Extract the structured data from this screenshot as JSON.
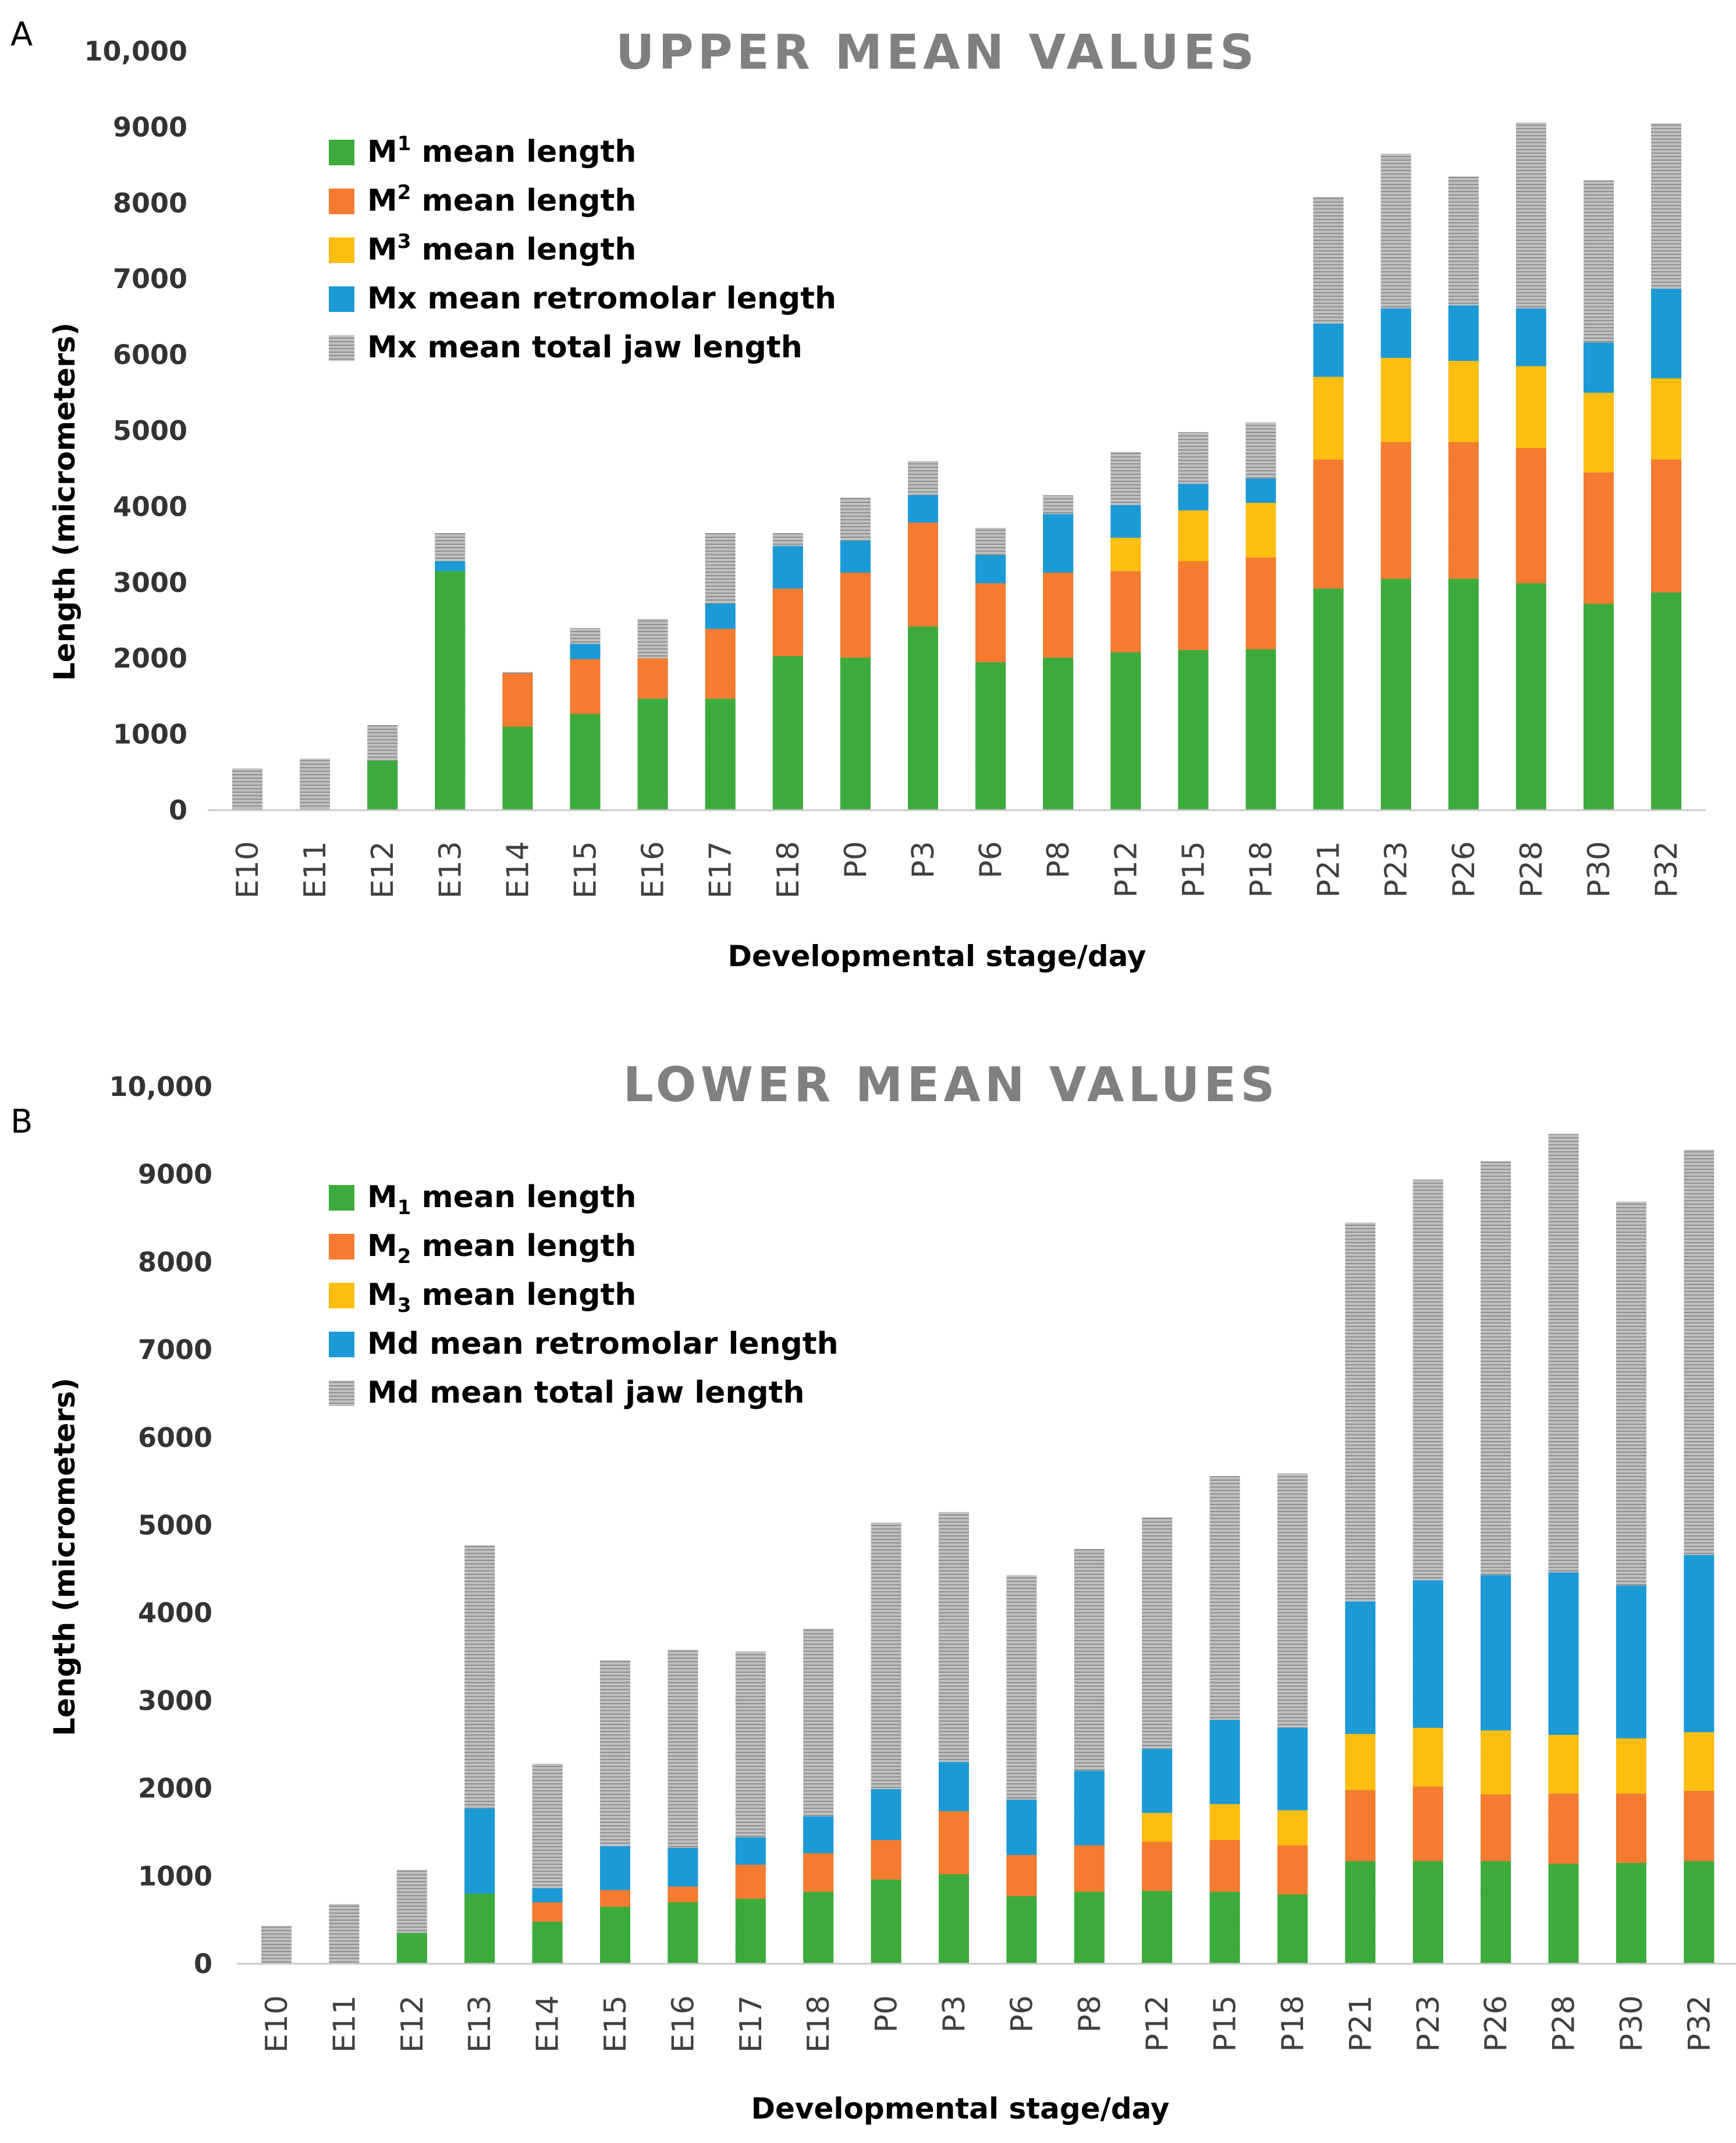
{
  "colors": {
    "m1": "#3cab3c",
    "m2": "#f47b2f",
    "m3": "#fdbe10",
    "retromolar": "#1b9ad6",
    "total": "#c0c0c0",
    "total_stripe": "#8f8f8f",
    "axis": "#c8c8c8"
  },
  "chart_data": [
    {
      "type": "bar",
      "stacked": true,
      "panel_letter": "A",
      "title": "UPPER MEAN VALUES",
      "xlabel": "Developmental stage/day",
      "ylabel": "Length (micrometers)",
      "ylim": [
        0,
        10000
      ],
      "yticks": [
        "0",
        "1000",
        "2000",
        "3000",
        "4000",
        "5000",
        "6000",
        "7000",
        "8000",
        "9000",
        "10,000"
      ],
      "legend_position": "top-left",
      "categories": [
        "E10",
        "E11",
        "E12",
        "E13",
        "E14",
        "E15",
        "E16",
        "E17",
        "E18",
        "P0",
        "P3",
        "P6",
        "P8",
        "P12",
        "P15",
        "P18",
        "P21",
        "P23",
        "P26",
        "P28",
        "P30",
        "P32"
      ],
      "series": [
        {
          "key": "m1",
          "name": "M1 mean length",
          "label_parts": [
            "M",
            "1",
            " mean length"
          ],
          "sub_type": "sup",
          "values": [
            0,
            0,
            650,
            3150,
            1100,
            1270,
            1470,
            1470,
            2030,
            2010,
            2420,
            1950,
            2010,
            2080,
            2110,
            2120,
            2920,
            3050,
            3050,
            2990,
            2720,
            2870
          ]
        },
        {
          "key": "m2",
          "name": "M2 mean length",
          "label_parts": [
            "M",
            "2",
            " mean length"
          ],
          "sub_type": "sup",
          "values": [
            0,
            0,
            0,
            0,
            700,
            720,
            530,
            920,
            890,
            1120,
            1370,
            1040,
            1120,
            1070,
            1170,
            1210,
            1700,
            1800,
            1800,
            1780,
            1730,
            1750
          ]
        },
        {
          "key": "m3",
          "name": "M3 mean length",
          "label_parts": [
            "M",
            "3",
            " mean length"
          ],
          "sub_type": "sup",
          "values": [
            0,
            0,
            0,
            0,
            0,
            0,
            0,
            0,
            0,
            0,
            0,
            0,
            0,
            440,
            670,
            720,
            1090,
            1110,
            1070,
            1080,
            1050,
            1070
          ]
        },
        {
          "key": "retromolar",
          "name": "Mx mean retromolar length",
          "label_parts": [
            "Mx mean retromolar length"
          ],
          "sub_type": "none",
          "values": [
            0,
            0,
            0,
            130,
            0,
            200,
            0,
            330,
            560,
            420,
            360,
            370,
            770,
            430,
            350,
            320,
            700,
            650,
            730,
            760,
            660,
            1180
          ]
        },
        {
          "key": "total",
          "name": "Mx mean total jaw length",
          "label_parts": [
            "Mx mean total jaw length"
          ],
          "sub_type": "none",
          "totals": [
            550,
            680,
            1120,
            3650,
            1820,
            2400,
            2520,
            3650,
            3650,
            4120,
            4600,
            3720,
            4150,
            4720,
            4980,
            5110,
            8080,
            8650,
            8350,
            9060,
            8300,
            9050
          ]
        }
      ]
    },
    {
      "type": "bar",
      "stacked": true,
      "panel_letter": "B",
      "title": "LOWER MEAN VALUES",
      "xlabel": "Developmental stage/day",
      "ylabel": "Length (micrometers)",
      "ylim": [
        0,
        10000
      ],
      "yticks": [
        "0",
        "1000",
        "2000",
        "3000",
        "4000",
        "5000",
        "6000",
        "7000",
        "8000",
        "9000",
        "10,000"
      ],
      "legend_position": "top-left",
      "categories": [
        "E10",
        "E11",
        "E12",
        "E13",
        "E14",
        "E15",
        "E16",
        "E17",
        "E18",
        "P0",
        "P3",
        "P6",
        "P8",
        "P12",
        "P15",
        "P18",
        "P21",
        "P23",
        "P26",
        "P28",
        "P30",
        "P32"
      ],
      "series": [
        {
          "key": "m1",
          "name": "M1 mean length",
          "label_parts": [
            "M",
            "1",
            " mean length"
          ],
          "sub_type": "sub",
          "values": [
            0,
            0,
            350,
            800,
            480,
            650,
            700,
            740,
            820,
            960,
            1020,
            770,
            820,
            830,
            820,
            790,
            1170,
            1170,
            1170,
            1140,
            1150,
            1170
          ]
        },
        {
          "key": "m2",
          "name": "M2 mean length",
          "label_parts": [
            "M",
            "2",
            " mean length"
          ],
          "sub_type": "sub",
          "values": [
            0,
            0,
            0,
            0,
            220,
            190,
            180,
            390,
            440,
            450,
            720,
            470,
            530,
            560,
            590,
            560,
            810,
            850,
            760,
            800,
            790,
            800
          ]
        },
        {
          "key": "m3",
          "name": "M3 mean length",
          "label_parts": [
            "M",
            "3",
            " mean length"
          ],
          "sub_type": "sub",
          "values": [
            0,
            0,
            0,
            0,
            0,
            0,
            0,
            0,
            0,
            0,
            0,
            0,
            0,
            330,
            410,
            400,
            640,
            670,
            730,
            670,
            630,
            670
          ]
        },
        {
          "key": "retromolar",
          "name": "Md mean retromolar length",
          "label_parts": [
            "Md mean retromolar length"
          ],
          "sub_type": "none",
          "values": [
            0,
            0,
            0,
            970,
            160,
            500,
            440,
            310,
            420,
            580,
            560,
            630,
            850,
            730,
            960,
            940,
            1510,
            1680,
            1770,
            1850,
            1740,
            2020
          ]
        },
        {
          "key": "total",
          "name": "Md mean total jaw length",
          "label_parts": [
            "Md mean total jaw length"
          ],
          "sub_type": "none",
          "totals": [
            430,
            680,
            1070,
            4770,
            2280,
            3460,
            3580,
            3560,
            3820,
            5030,
            5150,
            4430,
            4730,
            5090,
            5560,
            5590,
            8450,
            8940,
            9150,
            9460,
            8690,
            9280
          ]
        }
      ]
    }
  ]
}
